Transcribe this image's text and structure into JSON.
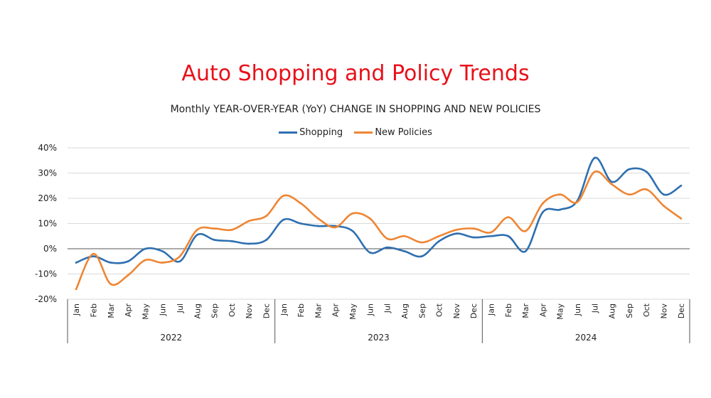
{
  "colors": {
    "title": "#e8101a",
    "shopping": "#2e6fb0",
    "new_policies": "#ee8533",
    "grid": "#d9d9d9",
    "axis": "#555555"
  },
  "chart_data": {
    "type": "line",
    "title": "Auto Shopping and Policy Trends",
    "subtitle": "Monthly YEAR-OVER-YEAR (YoY) CHANGE IN SHOPPING AND NEW POLICIES",
    "legend": "top-center",
    "grid": true,
    "ylim": [
      -20,
      40
    ],
    "yticks": [
      "40%",
      "30%",
      "20%",
      "10%",
      "0%",
      "-10%",
      "-20%"
    ],
    "ytick_values": [
      40,
      30,
      20,
      10,
      0,
      -10,
      -20
    ],
    "months": [
      "Jan",
      "Feb",
      "Mar",
      "Apr",
      "May",
      "Jun",
      "Jul",
      "Aug",
      "Sep",
      "Oct",
      "Nov",
      "Dec"
    ],
    "years": [
      "2022",
      "2023",
      "2024"
    ],
    "series": [
      {
        "name": "Shopping",
        "color": "#2e6fb0",
        "values": [
          -5.5,
          -3,
          -5.5,
          -5,
          0,
          -1,
          -5,
          5.5,
          3.5,
          3,
          2,
          3.5,
          11.5,
          10,
          9,
          9,
          7,
          -1.5,
          0.5,
          -1,
          -3,
          3,
          6,
          4.5,
          5,
          5,
          -1,
          14.5,
          15.5,
          19,
          36,
          26.5,
          31.5,
          30.5,
          21.5,
          25
        ]
      },
      {
        "name": "New Policies",
        "color": "#ee8533",
        "values": [
          -16,
          -2,
          -14,
          -10.5,
          -4.5,
          -5.5,
          -3,
          7.5,
          8,
          7.5,
          11,
          13,
          21,
          18,
          12,
          8.5,
          14,
          12,
          4,
          5,
          2.5,
          5,
          7.5,
          8,
          6.5,
          12.5,
          7,
          18,
          21.5,
          18.5,
          30.5,
          25.5,
          21.5,
          23.5,
          17,
          12
        ]
      }
    ]
  }
}
